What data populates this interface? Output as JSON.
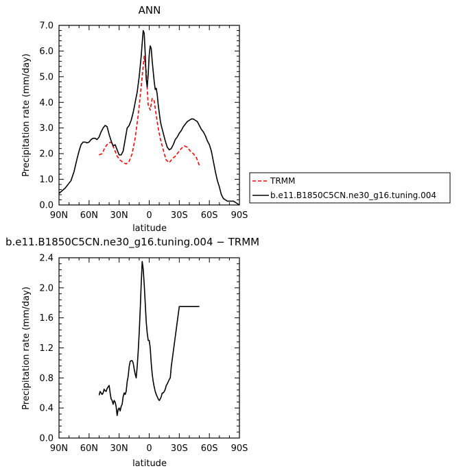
{
  "chart_data": [
    {
      "type": "line",
      "title": "ANN",
      "xlabel": "latitude",
      "ylabel": "Precipitation rate (mm/day)",
      "xlim": [
        90,
        -90
      ],
      "ylim": [
        0.0,
        7.0
      ],
      "x_ticks": [
        90,
        60,
        30,
        0,
        -30,
        -60,
        -90
      ],
      "x_tick_labels": [
        "90N",
        "60N",
        "30N",
        "0",
        "30S",
        "60S",
        "90S"
      ],
      "y_ticks": [
        0,
        1,
        2,
        3,
        4,
        5,
        6,
        7
      ],
      "y_tick_labels": [
        "0.0",
        "1.0",
        "2.0",
        "3.0",
        "4.0",
        "5.0",
        "6.0",
        "7.0"
      ],
      "legend_position": "right",
      "series": [
        {
          "name": "TRMM",
          "color": "#ff0000",
          "dash": true,
          "x": [
            50,
            47,
            44,
            41,
            38,
            35,
            32,
            29,
            26,
            23,
            20,
            17,
            14,
            11,
            8,
            5,
            3,
            1,
            -1,
            -3,
            -5,
            -7,
            -9,
            -11,
            -13,
            -15,
            -17,
            -20,
            -23,
            -26,
            -29,
            -32,
            -35,
            -38,
            -41,
            -44,
            -47,
            -50
          ],
          "y": [
            1.95,
            2.0,
            2.25,
            2.4,
            2.45,
            2.2,
            1.9,
            1.75,
            1.65,
            1.6,
            1.7,
            2.0,
            2.6,
            3.5,
            4.6,
            5.8,
            5.2,
            3.9,
            3.7,
            4.15,
            4.05,
            3.5,
            3.0,
            2.6,
            2.3,
            2.0,
            1.75,
            1.65,
            1.8,
            1.9,
            2.05,
            2.2,
            2.3,
            2.25,
            2.1,
            2.0,
            1.85,
            1.55
          ]
        },
        {
          "name": "b.e11.B1850C5CN.ne30_g16.tuning.004",
          "color": "#000000",
          "dash": false,
          "x": [
            90,
            87,
            84,
            81,
            78,
            75,
            72,
            70,
            68,
            66,
            64,
            62,
            60,
            58,
            56,
            54,
            52,
            50,
            48,
            46,
            44,
            42,
            40,
            38,
            36,
            34,
            32,
            30,
            28,
            26,
            24,
            22,
            20,
            18,
            16,
            14,
            12,
            10,
            8,
            6,
            5,
            4,
            3,
            2,
            1,
            0,
            -1,
            -2,
            -3,
            -4,
            -5,
            -6,
            -7,
            -8,
            -9,
            -10,
            -11,
            -12,
            -14,
            -16,
            -18,
            -20,
            -22,
            -24,
            -26,
            -28,
            -30,
            -32,
            -34,
            -36,
            -38,
            -40,
            -42,
            -44,
            -46,
            -48,
            -50,
            -52,
            -54,
            -56,
            -58,
            -60,
            -62,
            -64,
            -66,
            -68,
            -70,
            -72,
            -74,
            -76,
            -78,
            -80,
            -82,
            -84,
            -86,
            -88,
            -90
          ],
          "y": [
            0.45,
            0.55,
            0.65,
            0.8,
            0.95,
            1.3,
            1.8,
            2.1,
            2.35,
            2.45,
            2.45,
            2.42,
            2.45,
            2.55,
            2.6,
            2.6,
            2.55,
            2.65,
            2.85,
            3.0,
            3.1,
            3.05,
            2.75,
            2.5,
            2.3,
            2.35,
            2.15,
            1.95,
            1.95,
            2.1,
            2.55,
            3.0,
            3.1,
            3.3,
            3.6,
            4.0,
            4.4,
            5.0,
            5.8,
            6.8,
            6.7,
            5.9,
            4.9,
            4.6,
            5.1,
            5.85,
            6.2,
            6.1,
            5.6,
            5.2,
            4.8,
            4.5,
            4.55,
            4.3,
            3.9,
            3.6,
            3.3,
            3.1,
            2.8,
            2.5,
            2.25,
            2.15,
            2.2,
            2.35,
            2.55,
            2.65,
            2.8,
            2.9,
            3.05,
            3.15,
            3.25,
            3.3,
            3.35,
            3.35,
            3.3,
            3.25,
            3.1,
            2.95,
            2.85,
            2.7,
            2.5,
            2.35,
            2.1,
            1.7,
            1.3,
            0.95,
            0.7,
            0.4,
            0.25,
            0.2,
            0.15,
            0.15,
            0.15,
            0.15,
            0.1,
            0.05,
            0.0
          ]
        }
      ]
    },
    {
      "type": "line",
      "title": "b.e11.B1850C5CN.ne30_g16.tuning.004 − TRMM",
      "xlabel": "latitude",
      "ylabel": "Precipitation rate (mm/day)",
      "xlim": [
        90,
        -90
      ],
      "ylim": [
        0.0,
        2.4
      ],
      "x_ticks": [
        90,
        60,
        30,
        0,
        -30,
        -60,
        -90
      ],
      "x_tick_labels": [
        "90N",
        "60N",
        "30N",
        "0",
        "30S",
        "60S",
        "90S"
      ],
      "y_ticks": [
        0.0,
        0.4,
        0.8,
        1.2,
        1.6,
        2.0,
        2.4
      ],
      "y_tick_labels": [
        "0.0",
        "0.4",
        "0.8",
        "1.2",
        "1.6",
        "2.0",
        "2.4"
      ],
      "series": [
        {
          "name": "",
          "color": "#000000",
          "dash": false,
          "x": [
            50,
            49,
            48,
            47,
            46,
            45,
            44,
            43,
            42,
            41,
            40,
            39,
            38,
            37,
            36,
            35,
            34,
            33,
            32,
            31,
            30,
            29,
            28,
            27,
            26,
            25,
            24,
            23,
            22,
            21,
            20,
            19,
            18,
            17,
            16,
            15,
            14,
            13,
            12,
            11,
            10,
            9,
            8,
            7,
            6,
            5,
            4,
            3,
            2,
            1,
            0,
            -1,
            -2,
            -3,
            -4,
            -5,
            -6,
            -7,
            -8,
            -9,
            -10,
            -11,
            -12,
            -13,
            -14,
            -15,
            -16,
            -17,
            -18,
            -19,
            -20,
            -21,
            -22,
            -23,
            -24,
            -25,
            -26,
            -27,
            -28,
            -29,
            -30,
            -31,
            -32,
            -34,
            -36,
            -38,
            -40,
            -42,
            -44,
            -46,
            -48,
            -50
          ],
          "y": [
            0.57,
            0.62,
            0.6,
            0.58,
            0.6,
            0.65,
            0.63,
            0.62,
            0.66,
            0.68,
            0.7,
            0.6,
            0.52,
            0.5,
            0.45,
            0.5,
            0.48,
            0.42,
            0.3,
            0.38,
            0.4,
            0.36,
            0.42,
            0.45,
            0.55,
            0.6,
            0.58,
            0.62,
            0.75,
            0.82,
            0.95,
            1.02,
            1.03,
            1.03,
            1.0,
            0.92,
            0.85,
            0.8,
            0.95,
            1.15,
            1.4,
            1.7,
            2.05,
            2.35,
            2.25,
            2.05,
            1.8,
            1.55,
            1.4,
            1.3,
            1.3,
            1.2,
            1.0,
            0.85,
            0.75,
            0.68,
            0.62,
            0.58,
            0.55,
            0.52,
            0.5,
            0.52,
            0.55,
            0.6,
            0.6,
            0.62,
            0.65,
            0.7,
            0.72,
            0.75,
            0.78,
            0.8,
            0.95,
            1.05,
            1.15,
            1.25,
            1.35,
            1.45,
            1.55,
            1.65,
            1.75,
            1.75,
            1.75,
            1.75,
            1.75,
            1.75,
            1.75,
            1.75,
            1.75,
            1.75,
            1.75,
            1.75
          ]
        }
      ]
    }
  ]
}
